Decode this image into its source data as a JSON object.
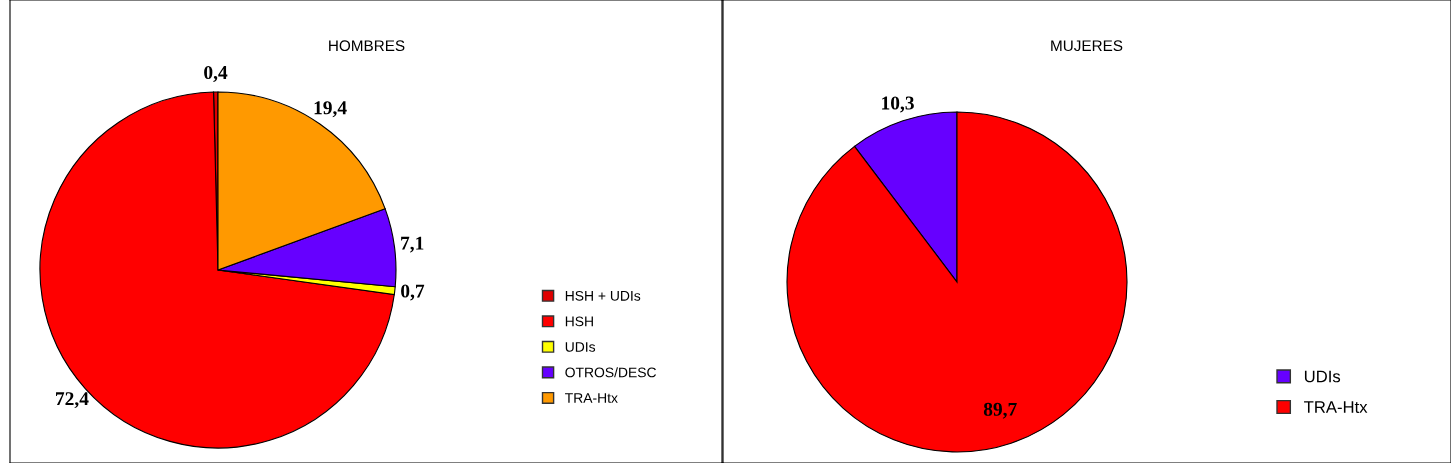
{
  "chart_data": [
    {
      "type": "pie",
      "title": "HOMBRES",
      "categories": [
        "HSH + UDIs",
        "HSH",
        "UDIs",
        "OTROS/DESC",
        "TRA-Htx"
      ],
      "values": [
        0.4,
        72.4,
        0.7,
        7.1,
        19.4
      ],
      "colors": [
        "#e00000",
        "#ff0000",
        "#ffff00",
        "#6600ff",
        "#ff9900"
      ],
      "value_labels": [
        "0,4",
        "72,4",
        "0,7",
        "7,1",
        "19,4"
      ],
      "legend": "right"
    },
    {
      "type": "pie",
      "title": "MUJERES",
      "categories": [
        "UDIs",
        "TRA-Htx"
      ],
      "values": [
        10.3,
        89.7
      ],
      "colors": [
        "#6600ff",
        "#ff0000"
      ],
      "value_labels": [
        "10,3",
        "89,7"
      ],
      "legend": "bottom right"
    }
  ]
}
